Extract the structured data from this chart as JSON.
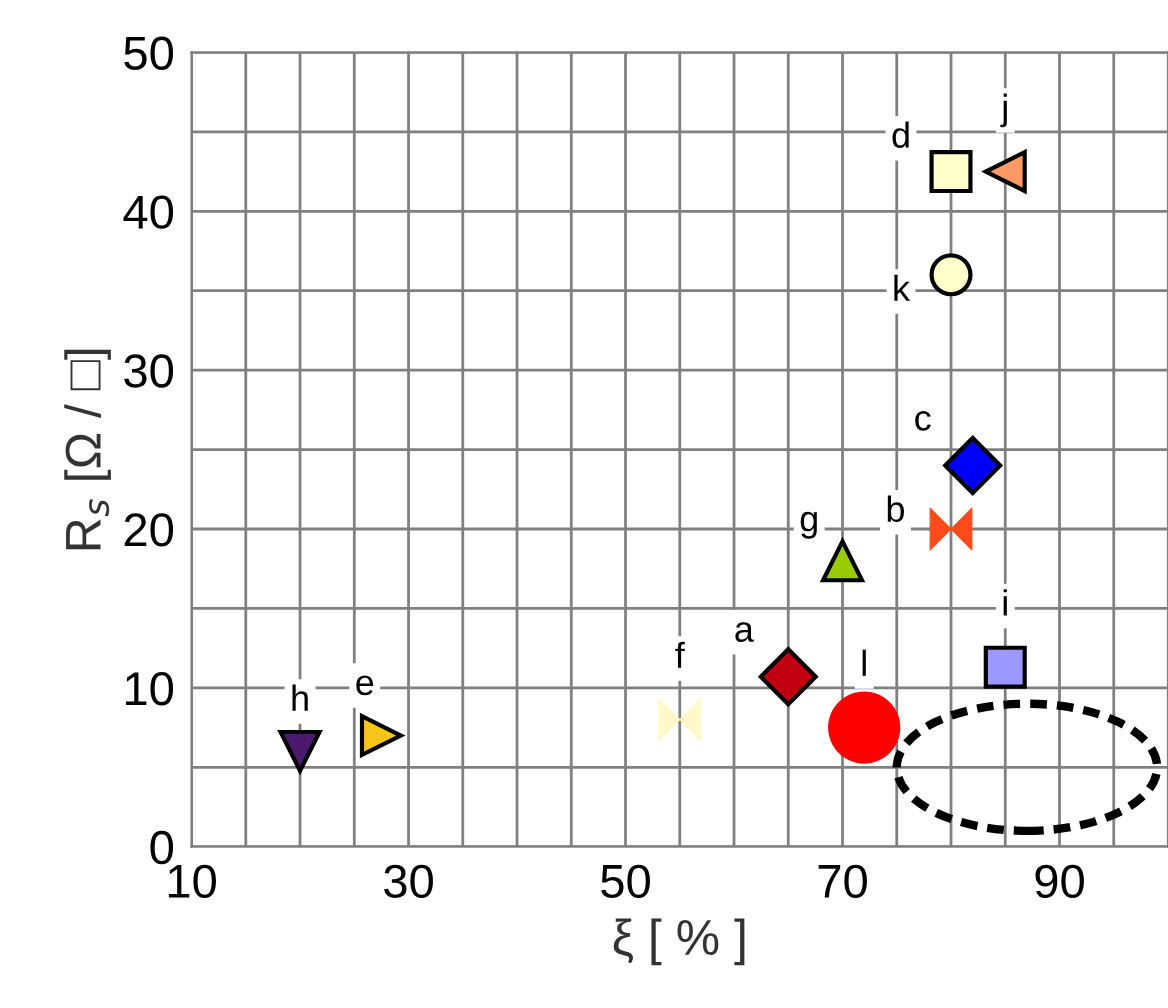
{
  "chart_data": {
    "type": "scatter",
    "xlabel": "ξ [ % ]",
    "ylabel": "R$_{s}$ [Ω / □]",
    "xlim": [
      10,
      100
    ],
    "ylim": [
      0,
      50
    ],
    "xticks": [
      10,
      {
        "value": 15,
        "label": null
      },
      {
        "value": 20,
        "label": null
      },
      {
        "value": 25,
        "label": null
      },
      30,
      {
        "value": 35,
        "label": null
      },
      {
        "value": 40,
        "label": null
      },
      {
        "value": 45,
        "label": null
      },
      50,
      {
        "value": 55,
        "label": null
      },
      {
        "value": 60,
        "label": null
      },
      {
        "value": 65,
        "label": null
      },
      70,
      {
        "value": 75,
        "label": null
      },
      {
        "value": 80,
        "label": null
      },
      {
        "value": 85,
        "label": null
      },
      90,
      {
        "value": 95,
        "label": null
      }
    ],
    "yticks": [
      0,
      {
        "value": 5,
        "label": null
      },
      10,
      {
        "value": 15,
        "label": null
      },
      20,
      {
        "value": 25,
        "label": null
      },
      30,
      {
        "value": 35,
        "label": null
      },
      40,
      {
        "value": 45,
        "label": null
      },
      50
    ],
    "grid": true,
    "series": [
      {
        "name": "h",
        "color": "#4b1a6e",
        "marker": "triangle-down",
        "x": [
          20
        ],
        "values": [
          6
        ]
      },
      {
        "name": "e",
        "color": "#f5c518",
        "marker": "triangle-right",
        "x": [
          27.5
        ],
        "values": [
          7
        ]
      },
      {
        "name": "f",
        "color": "#fff8c8",
        "x": [
          55
        ],
        "values": [
          8
        ]
      },
      {
        "name": "a",
        "color": "#c00010",
        "marker": "diamond",
        "x": [
          65
        ],
        "values": [
          10.7
        ]
      },
      {
        "name": "l",
        "color": "#ff0000",
        "marker": "circle",
        "x": [
          72
        ],
        "values": [
          7.5
        ]
      },
      {
        "name": "g",
        "color": "#99cc00",
        "marker": "triangle",
        "x": [
          70
        ],
        "values": [
          18
        ]
      },
      {
        "name": "b",
        "color": "#ff4a1a",
        "x": [
          80
        ],
        "values": [
          20
        ]
      },
      {
        "name": "c",
        "color": "#0000ff",
        "marker": "diamond",
        "x": [
          82
        ],
        "values": [
          24
        ]
      },
      {
        "name": "i",
        "color": "#9999ff",
        "marker": "square",
        "x": [
          85
        ],
        "values": [
          11.3
        ]
      },
      {
        "name": "d",
        "color": "#ffffcc",
        "marker": "square",
        "x": [
          80
        ],
        "values": [
          42.5
        ]
      },
      {
        "name": "j",
        "color": "#ff9966",
        "marker": "triangle-left",
        "x": [
          85
        ],
        "values": [
          42.5
        ]
      },
      {
        "name": "k",
        "color": "#ffffcc",
        "marker": "circle",
        "x": [
          80
        ],
        "values": [
          36
        ]
      }
    ]
  }
}
